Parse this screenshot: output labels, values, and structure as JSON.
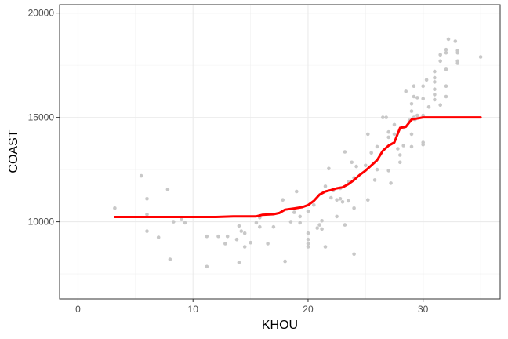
{
  "chart_data": {
    "type": "scatter",
    "xlabel": "KHOU",
    "ylabel": "COAST",
    "xlim": [
      -1.6,
      36.7
    ],
    "ylim": [
      6300,
      20400
    ],
    "x_ticks": [
      0,
      10,
      20,
      30
    ],
    "x_minor_ticks": [
      5,
      15,
      25,
      35
    ],
    "y_ticks": [
      10000,
      15000,
      20000
    ],
    "y_minor_ticks": [
      7500,
      12500,
      17500
    ],
    "grid": true,
    "point_color": "#c8c8c8",
    "line_color": "#ff0000",
    "points": [
      [
        3.2,
        10650
      ],
      [
        5.5,
        12200
      ],
      [
        6.0,
        11100
      ],
      [
        6.0,
        10350
      ],
      [
        6.0,
        9550
      ],
      [
        7.0,
        9250
      ],
      [
        7.8,
        11550
      ],
      [
        8.0,
        8200
      ],
      [
        8.3,
        10000
      ],
      [
        9.0,
        10150
      ],
      [
        9.3,
        9950
      ],
      [
        11.2,
        7850
      ],
      [
        11.2,
        9300
      ],
      [
        12.2,
        9300
      ],
      [
        12.8,
        8950
      ],
      [
        13.0,
        9300
      ],
      [
        13.8,
        9150
      ],
      [
        14.0,
        9800
      ],
      [
        14.2,
        9550
      ],
      [
        14.5,
        9450
      ],
      [
        14.0,
        8050
      ],
      [
        14.5,
        8800
      ],
      [
        15.0,
        9000
      ],
      [
        15.5,
        9950
      ],
      [
        15.8,
        10200
      ],
      [
        15.8,
        9750
      ],
      [
        16.5,
        8950
      ],
      [
        17.0,
        9750
      ],
      [
        17.8,
        11050
      ],
      [
        18.0,
        8100
      ],
      [
        18.5,
        10000
      ],
      [
        18.8,
        10450
      ],
      [
        19.0,
        11450
      ],
      [
        19.3,
        10250
      ],
      [
        19.3,
        9950
      ],
      [
        20.0,
        9150
      ],
      [
        20.0,
        9450
      ],
      [
        20.0,
        8950
      ],
      [
        20.0,
        8800
      ],
      [
        20.0,
        10500
      ],
      [
        20.5,
        10800
      ],
      [
        20.8,
        9700
      ],
      [
        21.0,
        9850
      ],
      [
        21.2,
        9650
      ],
      [
        21.2,
        10050
      ],
      [
        21.5,
        11700
      ],
      [
        21.5,
        8800
      ],
      [
        21.8,
        12550
      ],
      [
        22.0,
        11150
      ],
      [
        22.2,
        11500
      ],
      [
        22.5,
        10250
      ],
      [
        22.5,
        11050
      ],
      [
        22.8,
        11600
      ],
      [
        22.8,
        11100
      ],
      [
        23.0,
        10950
      ],
      [
        23.2,
        9850
      ],
      [
        23.2,
        13350
      ],
      [
        23.5,
        11900
      ],
      [
        23.5,
        11000
      ],
      [
        23.8,
        12850
      ],
      [
        24.0,
        12100
      ],
      [
        24.0,
        10650
      ],
      [
        24.0,
        8450
      ],
      [
        24.2,
        12650
      ],
      [
        25.0,
        12700
      ],
      [
        25.2,
        14200
      ],
      [
        25.2,
        11050
      ],
      [
        25.5,
        13300
      ],
      [
        25.8,
        12000
      ],
      [
        26.0,
        12500
      ],
      [
        26.0,
        13600
      ],
      [
        26.5,
        15000
      ],
      [
        26.8,
        15000
      ],
      [
        27.0,
        12450
      ],
      [
        27.0,
        14050
      ],
      [
        27.0,
        14300
      ],
      [
        27.2,
        11850
      ],
      [
        27.5,
        14200
      ],
      [
        27.5,
        14650
      ],
      [
        27.8,
        13500
      ],
      [
        28.0,
        12850
      ],
      [
        28.0,
        13200
      ],
      [
        28.3,
        14500
      ],
      [
        28.3,
        13650
      ],
      [
        28.5,
        16250
      ],
      [
        28.8,
        14850
      ],
      [
        29.0,
        15650
      ],
      [
        29.0,
        15300
      ],
      [
        29.0,
        14200
      ],
      [
        29.0,
        13600
      ],
      [
        29.2,
        16500
      ],
      [
        29.2,
        16000
      ],
      [
        29.2,
        15000
      ],
      [
        29.3,
        14900
      ],
      [
        29.5,
        15100
      ],
      [
        29.5,
        15950
      ],
      [
        30.0,
        13800
      ],
      [
        30.0,
        13700
      ],
      [
        30.0,
        15100
      ],
      [
        30.0,
        15900
      ],
      [
        30.0,
        16500
      ],
      [
        30.3,
        16800
      ],
      [
        30.5,
        15500
      ],
      [
        31.0,
        16900
      ],
      [
        31.0,
        16700
      ],
      [
        31.0,
        16350
      ],
      [
        31.0,
        16100
      ],
      [
        31.0,
        15850
      ],
      [
        31.0,
        17200
      ],
      [
        31.5,
        15600
      ],
      [
        31.5,
        17700
      ],
      [
        31.5,
        18000
      ],
      [
        32.0,
        18100
      ],
      [
        32.0,
        17300
      ],
      [
        32.0,
        16500
      ],
      [
        32.0,
        16000
      ],
      [
        32.0,
        18250
      ],
      [
        32.2,
        18750
      ],
      [
        33.0,
        17700
      ],
      [
        33.0,
        18100
      ],
      [
        33.0,
        18200
      ],
      [
        33.0,
        17600
      ],
      [
        32.8,
        18650
      ],
      [
        35.0,
        17900
      ]
    ],
    "fit_line": [
      [
        3.2,
        10230
      ],
      [
        8,
        10230
      ],
      [
        12,
        10230
      ],
      [
        13.5,
        10260
      ],
      [
        15.5,
        10260
      ],
      [
        16,
        10330
      ],
      [
        17,
        10360
      ],
      [
        17.5,
        10420
      ],
      [
        18,
        10580
      ],
      [
        18.8,
        10640
      ],
      [
        19.5,
        10700
      ],
      [
        20,
        10800
      ],
      [
        20.5,
        11000
      ],
      [
        21,
        11300
      ],
      [
        21.5,
        11450
      ],
      [
        22,
        11520
      ],
      [
        22.5,
        11600
      ],
      [
        23,
        11650
      ],
      [
        23.5,
        11800
      ],
      [
        24,
        12000
      ],
      [
        24.5,
        12250
      ],
      [
        25,
        12450
      ],
      [
        25.5,
        12700
      ],
      [
        26,
        12950
      ],
      [
        26.5,
        13400
      ],
      [
        27,
        13650
      ],
      [
        27.5,
        13800
      ],
      [
        28,
        14500
      ],
      [
        28.5,
        14550
      ],
      [
        29,
        14900
      ],
      [
        30,
        15000
      ],
      [
        31,
        15000
      ],
      [
        35,
        15000
      ]
    ]
  }
}
